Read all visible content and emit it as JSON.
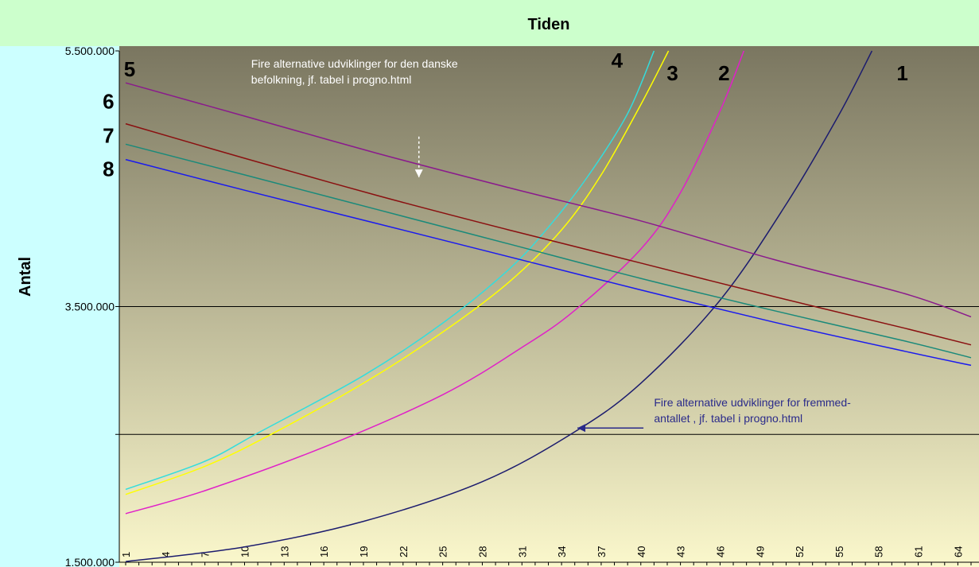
{
  "chart_data": {
    "type": "line",
    "title": "Tiden",
    "ylabel": "Antal",
    "xlabel": "",
    "ylim": [
      1500000,
      5500000
    ],
    "yticks": [
      {
        "value": 5500000,
        "label": "5.500.000"
      },
      {
        "value": 3500000,
        "label": "3.500.000"
      },
      {
        "value": 1500000,
        "label": "1.500.000"
      }
    ],
    "gridlines_y": [
      3500000,
      2500000
    ],
    "xlim": [
      1,
      65
    ],
    "xticks": [
      "1",
      "4",
      "7",
      "10",
      "13",
      "16",
      "19",
      "22",
      "25",
      "28",
      "31",
      "34",
      "37",
      "40",
      "43",
      "46",
      "49",
      "52",
      "55",
      "58",
      "61",
      "64"
    ],
    "colors": {
      "title_bar": "#ccffcc",
      "left_panel": "#ccffff",
      "plot_top": "#7a7660",
      "plot_bottom": "#fbf8cc"
    },
    "series": [
      {
        "name": "1",
        "color": "#1c1c6e",
        "x": [
          1,
          10,
          19,
          28,
          35,
          40,
          46,
          51,
          55,
          57.5
        ],
        "y": [
          1505000,
          1620000,
          1820000,
          2130000,
          2520000,
          2900000,
          3550000,
          4300000,
          5000000,
          5500000
        ]
      },
      {
        "name": "2",
        "color": "#e020c8",
        "x": [
          1,
          7,
          16,
          25,
          31,
          35,
          40,
          43,
          46,
          47.8
        ],
        "y": [
          1880000,
          2060000,
          2400000,
          2810000,
          3180000,
          3470000,
          3950000,
          4390000,
          5030000,
          5500000
        ]
      },
      {
        "name": "3",
        "color": "#ffff00",
        "x": [
          1,
          7,
          12,
          19,
          25,
          30,
          34,
          37,
          40,
          42.1
        ],
        "y": [
          2030000,
          2250000,
          2500000,
          2900000,
          3300000,
          3690000,
          4100000,
          4530000,
          5080000,
          5500000
        ]
      },
      {
        "name": "4",
        "color": "#33dddd",
        "x": [
          1,
          7,
          11,
          19,
          25,
          30,
          33,
          36,
          39,
          41
        ],
        "y": [
          2070000,
          2290000,
          2510000,
          2960000,
          3370000,
          3790000,
          4120000,
          4520000,
          5010000,
          5500000
        ]
      },
      {
        "name": "5",
        "color": "#8a1a8c",
        "x": [
          1,
          10,
          20,
          30,
          40,
          50,
          60,
          65
        ],
        "y": [
          5250000,
          4990000,
          4700000,
          4430000,
          4170000,
          3870000,
          3600000,
          3420000
        ]
      },
      {
        "name": "6",
        "color": "#8a1010",
        "x": [
          1,
          10,
          20,
          30,
          40,
          50,
          60,
          65
        ],
        "y": [
          4930000,
          4660000,
          4370000,
          4100000,
          3840000,
          3580000,
          3330000,
          3200000
        ]
      },
      {
        "name": "7",
        "color": "#1a8a7a",
        "x": [
          1,
          10,
          20,
          30,
          40,
          50,
          60,
          65
        ],
        "y": [
          4770000,
          4530000,
          4260000,
          3990000,
          3720000,
          3470000,
          3230000,
          3100000
        ]
      },
      {
        "name": "8",
        "color": "#1a1aee",
        "x": [
          1,
          10,
          20,
          30,
          40,
          50,
          60,
          65
        ],
        "y": [
          4650000,
          4410000,
          4150000,
          3890000,
          3630000,
          3380000,
          3150000,
          3040000
        ]
      }
    ],
    "series_labels": [
      {
        "text": "5",
        "x": 1.3,
        "y": 5300000
      },
      {
        "text": "6",
        "x": -0.3,
        "y": 5050000
      },
      {
        "text": "7",
        "x": -0.3,
        "y": 4780000
      },
      {
        "text": "8",
        "x": -0.3,
        "y": 4520000
      },
      {
        "text": "4",
        "x": 38.2,
        "y": 5370000
      },
      {
        "text": "3",
        "x": 42.4,
        "y": 5270000
      },
      {
        "text": "2",
        "x": 46.3,
        "y": 5270000
      },
      {
        "text": "1",
        "x": 59.8,
        "y": 5270000
      }
    ],
    "annotations": [
      {
        "line1": "Fire alternative udviklinger for den danske",
        "line2": "befolkning, jf. tabel i progno.html",
        "x": 10.5,
        "y": 5370000,
        "color": "#ffffff"
      },
      {
        "line1": "Fire alternative udviklinger for fremmed-",
        "line2": "antallet , jf. tabel i progno.html",
        "x": 41,
        "y": 2720000,
        "color": "#2a2a8a"
      }
    ],
    "arrows": [
      {
        "direction": "down",
        "x1": 23.2,
        "y1": 4830000,
        "x2": 23.2,
        "y2": 4510000,
        "color": "#ffffff",
        "dashed": true
      },
      {
        "direction": "left",
        "x1": 40.2,
        "y1": 2550000,
        "x2": 35.2,
        "y2": 2550000,
        "color": "#2a2a8a",
        "dashed": false
      }
    ]
  }
}
